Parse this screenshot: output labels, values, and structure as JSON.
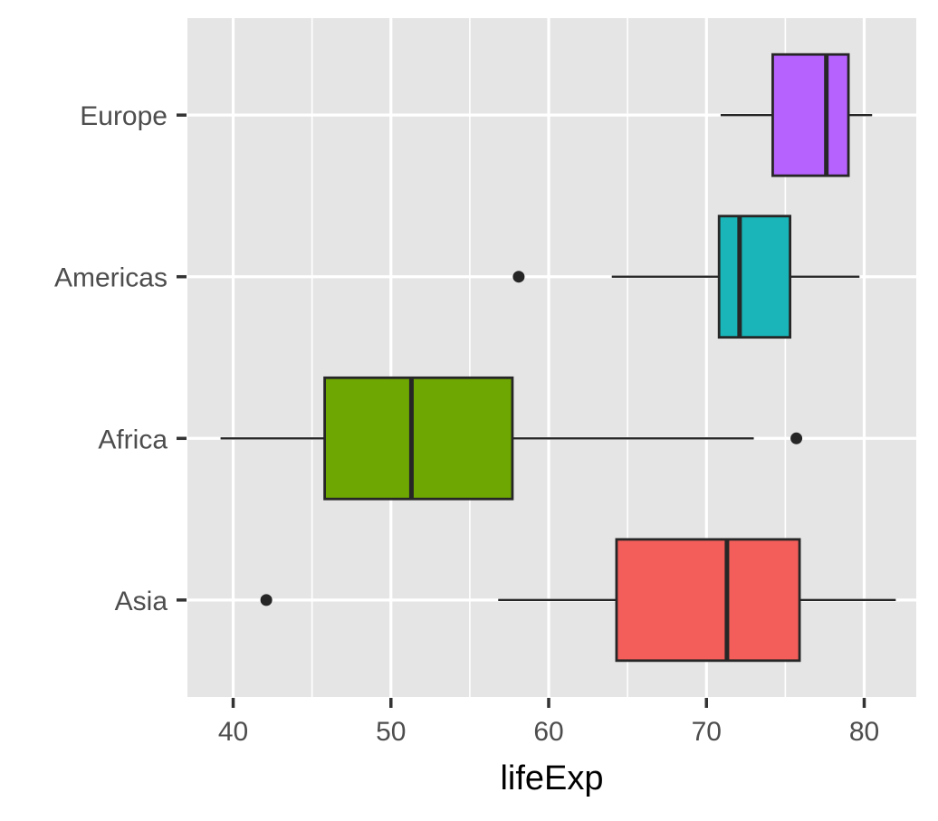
{
  "chart_data": {
    "type": "boxplot",
    "orientation": "horizontal",
    "title": "",
    "xlabel": "lifeExp",
    "ylabel": "",
    "xlim": [
      37.1,
      83.3
    ],
    "x_ticks": [
      40,
      50,
      60,
      70,
      80
    ],
    "grid": true,
    "legend": "none",
    "panel_background": "#e5e5e5",
    "categories": [
      "Asia",
      "Africa",
      "Americas",
      "Europe"
    ],
    "boxes": [
      {
        "category": "Asia",
        "whisker_low": 56.8,
        "q1": 64.3,
        "median": 71.3,
        "q3": 75.9,
        "whisker_high": 82.0,
        "outliers": [
          42.1
        ],
        "color": "#f35e5a"
      },
      {
        "category": "Africa",
        "whisker_low": 39.2,
        "q1": 45.8,
        "median": 51.3,
        "q3": 57.7,
        "whisker_high": 73.0,
        "outliers": [
          75.7
        ],
        "color": "#6ea602"
      },
      {
        "category": "Americas",
        "whisker_low": 64.0,
        "q1": 70.8,
        "median": 72.1,
        "q3": 75.3,
        "whisker_high": 79.7,
        "outliers": [
          58.1
        ],
        "color": "#19b5b8"
      },
      {
        "category": "Europe",
        "whisker_low": 70.9,
        "q1": 74.2,
        "median": 77.6,
        "q3": 79.0,
        "whisker_high": 80.5,
        "outliers": [],
        "color": "#b662ff"
      }
    ]
  }
}
